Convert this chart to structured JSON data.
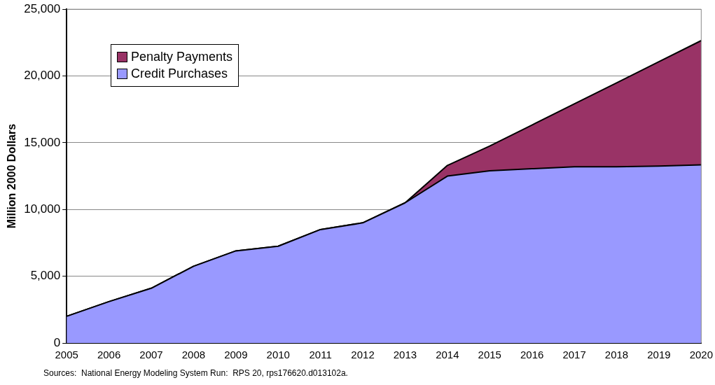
{
  "chart_data": {
    "type": "area",
    "stacked": true,
    "ylabel": "Million 2000 Dollars",
    "categories": [
      "2005",
      "2006",
      "2007",
      "2008",
      "2009",
      "2010",
      "2011",
      "2012",
      "2013",
      "2014",
      "2015",
      "2016",
      "2017",
      "2018",
      "2019",
      "2020"
    ],
    "series": [
      {
        "name": "Credit Purchases",
        "color": "#9999ff",
        "values": [
          2000,
          3100,
          4100,
          5750,
          6900,
          7250,
          8500,
          9000,
          10500,
          12500,
          12900,
          13050,
          13200,
          13200,
          13250,
          13350
        ]
      },
      {
        "name": "Penalty Payments",
        "color": "#993366",
        "values": [
          0,
          0,
          0,
          0,
          0,
          0,
          0,
          0,
          0,
          800,
          1850,
          3280,
          4710,
          6290,
          7820,
          9300
        ]
      }
    ],
    "ylim": [
      0,
      25000
    ],
    "yticks": [
      0,
      {
        "value": 5000,
        "label": "5,000"
      },
      {
        "value": 10000,
        "label": "10,000"
      },
      {
        "value": 15000,
        "label": "15,000"
      },
      {
        "value": 20000,
        "label": "20,000"
      },
      {
        "value": 25000,
        "label": "25,000"
      }
    ],
    "grid": "y",
    "legend": "top left",
    "marker": "none",
    "annotations": [
      "Sources:  National Energy Modeling System Run:  RPS 20, rps176620.d013102a."
    ]
  }
}
